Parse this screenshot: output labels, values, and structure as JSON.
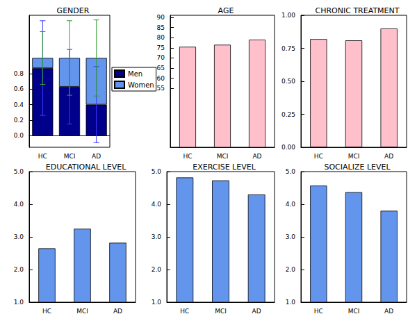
{
  "chart_data": [
    {
      "type": "bar",
      "title": "GENDER",
      "categories": [
        "HC",
        "MCI",
        "AD"
      ],
      "stacked": true,
      "series": [
        {
          "name": "Men",
          "color": "#00008b",
          "values": [
            0.87,
            0.63,
            0.4
          ],
          "error_bars": [
            [
              0.26,
              1.48
            ],
            [
              0.15,
              1.11
            ],
            [
              -0.09,
              0.89
            ]
          ]
        },
        {
          "name": "Women",
          "color": "#6495ed",
          "values": [
            0.13,
            0.37,
            0.6
          ],
          "error_bars": [
            [
              0.66,
              1.34
            ],
            [
              0.52,
              1.48
            ],
            [
              0.51,
              1.49
            ]
          ]
        }
      ],
      "ylim": [
        -0.15,
        1.55
      ],
      "yticks": [
        {
          "value": 0,
          "label": "0.0"
        },
        {
          "value": 0.2,
          "label": "0.2"
        },
        {
          "value": 0.4,
          "label": "0.4"
        },
        {
          "value": 0.6,
          "label": "0.6"
        },
        {
          "value": 0.8,
          "label": "0.8"
        }
      ],
      "legend": "right",
      "grid": false
    },
    {
      "type": "bar",
      "title": "AGE",
      "categories": [
        "HC",
        "MCI",
        "AD"
      ],
      "values": [
        75.5,
        76.5,
        79.0
      ],
      "color": "#ffc0cb",
      "ylim": [
        26,
        91
      ],
      "yticks": [
        55,
        60,
        65,
        70,
        75,
        80,
        85,
        90
      ],
      "grid": false
    },
    {
      "type": "bar",
      "title": "CHRONIC TREATMENT",
      "categories": [
        "HC",
        "MCI",
        "AD"
      ],
      "values": [
        0.82,
        0.81,
        0.9
      ],
      "color": "#ffc0cb",
      "ylim": [
        0,
        1
      ],
      "yticks": [
        {
          "value": 0,
          "label": "0.00"
        },
        {
          "value": 0.25,
          "label": "0.25"
        },
        {
          "value": 0.5,
          "label": "0.50"
        },
        {
          "value": 0.75,
          "label": "0.75"
        },
        {
          "value": 1,
          "label": "1.00"
        }
      ],
      "grid": false
    },
    {
      "type": "bar",
      "title": "EDUCATIONAL LEVEL",
      "categories": [
        "HC",
        "MCI",
        "AD"
      ],
      "values": [
        2.65,
        3.25,
        2.82
      ],
      "color": "#6495ed",
      "ylim": [
        1,
        5
      ],
      "yticks": [
        {
          "value": 1,
          "label": "1.0"
        },
        {
          "value": 2,
          "label": "2.0"
        },
        {
          "value": 3,
          "label": "3.0"
        },
        {
          "value": 4,
          "label": "4.0"
        },
        {
          "value": 5,
          "label": "5.0"
        }
      ],
      "grid": false
    },
    {
      "type": "bar",
      "title": "EXERCISE LEVEL",
      "categories": [
        "HC",
        "MCI",
        "AD"
      ],
      "values": [
        4.82,
        4.73,
        4.3
      ],
      "color": "#6495ed",
      "ylim": [
        1,
        5
      ],
      "yticks": [
        {
          "value": 1,
          "label": "1.0"
        },
        {
          "value": 2,
          "label": "2.0"
        },
        {
          "value": 3,
          "label": "3.0"
        },
        {
          "value": 4,
          "label": "4.0"
        },
        {
          "value": 5,
          "label": "5.0"
        }
      ],
      "grid": false
    },
    {
      "type": "bar",
      "title": "SOCIALIZE LEVEL",
      "categories": [
        "HC",
        "MCI",
        "AD"
      ],
      "values": [
        4.57,
        4.37,
        3.8
      ],
      "color": "#6495ed",
      "ylim": [
        1,
        5
      ],
      "yticks": [
        {
          "value": 1,
          "label": "1.0"
        },
        {
          "value": 2,
          "label": "2.0"
        },
        {
          "value": 3,
          "label": "3.0"
        },
        {
          "value": 4,
          "label": "4.0"
        },
        {
          "value": 5,
          "label": "5.0"
        }
      ],
      "grid": false
    }
  ]
}
